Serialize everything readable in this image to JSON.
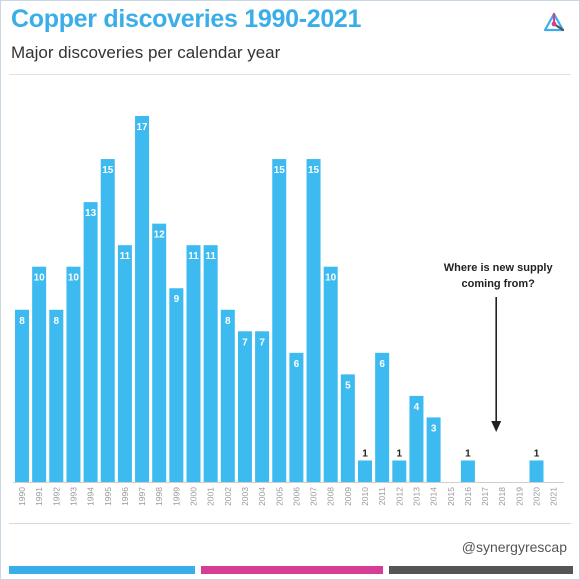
{
  "header": {
    "title": "Copper discoveries 1990-2021",
    "subtitle": "Major discoveries per calendar year"
  },
  "logo_icon": "synergy-logo-icon",
  "footer": {
    "handle": "@synergyrescap",
    "stripe_colors": [
      "#3aaee8",
      "#d63d96",
      "#555555"
    ]
  },
  "colors": {
    "bar": "#3dbbf0",
    "title": "#3aaee8"
  },
  "chart_data": {
    "type": "bar",
    "title": "Copper discoveries 1990-2021",
    "subtitle": "Major discoveries per calendar year",
    "xlabel": "",
    "ylabel": "",
    "categories": [
      "1990",
      "1991",
      "1992",
      "1993",
      "1994",
      "1995",
      "1996",
      "1997",
      "1998",
      "1999",
      "2000",
      "2001",
      "2002",
      "2003",
      "2004",
      "2005",
      "2006",
      "2007",
      "2008",
      "2009",
      "2010",
      "2011",
      "2012",
      "2013",
      "2014",
      "2015",
      "2016",
      "2017",
      "2018",
      "2019",
      "2020",
      "2021"
    ],
    "values": [
      8,
      10,
      8,
      10,
      13,
      15,
      11,
      17,
      12,
      9,
      11,
      11,
      8,
      7,
      7,
      15,
      6,
      15,
      10,
      5,
      1,
      6,
      1,
      4,
      3,
      0,
      1,
      0,
      0,
      0,
      1,
      0
    ],
    "ylim": [
      0,
      17
    ],
    "grid": false,
    "annotations": [
      {
        "text_lines": [
          "Where is new supply",
          "coming from?"
        ],
        "points_to": "2018"
      }
    ]
  }
}
